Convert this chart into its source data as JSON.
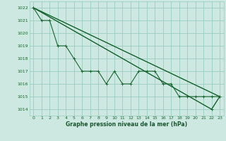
{
  "background_color": "#cce8e0",
  "grid_color": "#99ccc0",
  "line_color": "#1a6632",
  "title": "Graphe pression niveau de la mer (hPa)",
  "title_color": "#1a5530",
  "xlim": [
    -0.5,
    23.5
  ],
  "ylim": [
    1013.5,
    1022.5
  ],
  "yticks": [
    1014,
    1015,
    1016,
    1017,
    1018,
    1019,
    1020,
    1021,
    1022
  ],
  "xticks": [
    0,
    1,
    2,
    3,
    4,
    5,
    6,
    7,
    8,
    9,
    10,
    11,
    12,
    13,
    14,
    15,
    16,
    17,
    18,
    19,
    20,
    21,
    22,
    23
  ],
  "series_zigzag": [
    1022,
    1021,
    1021,
    1019,
    1019,
    1018,
    1017,
    1017,
    1017,
    1016,
    1017,
    1016,
    1016,
    1017,
    1017,
    1017,
    1016,
    1016,
    1015,
    1015,
    1015,
    1015,
    1015,
    1015
  ],
  "series_upper_diagonal": [
    [
      0,
      1022
    ],
    [
      23,
      1015
    ]
  ],
  "series_lower_diagonal": [
    [
      0,
      1022
    ],
    [
      22,
      1014
    ],
    [
      23,
      1015
    ]
  ],
  "series_mid_diagonal": [
    [
      0,
      1022
    ],
    [
      23,
      1015
    ]
  ]
}
